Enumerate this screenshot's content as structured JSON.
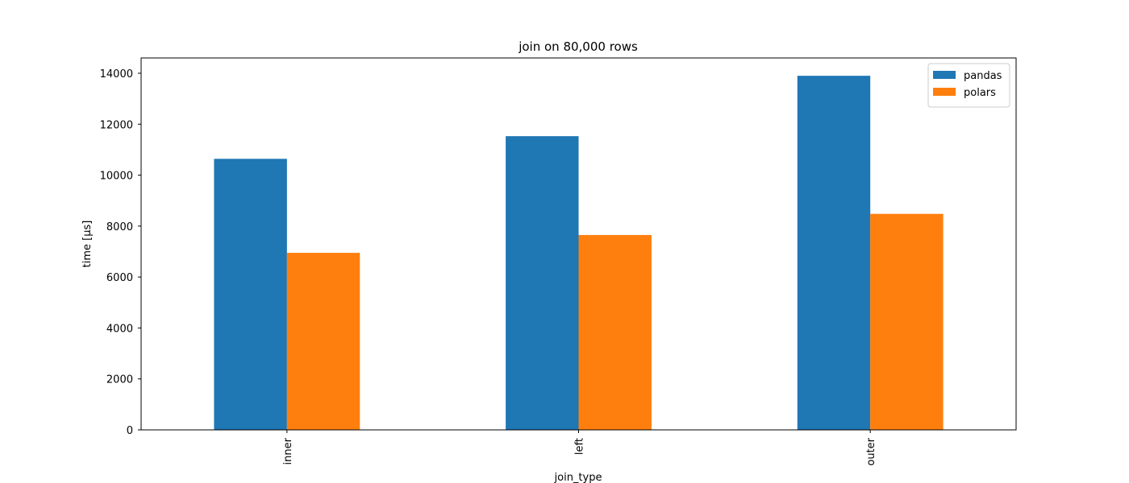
{
  "chart_data": {
    "type": "bar",
    "title": "join on 80,000 rows",
    "xlabel": "join_type",
    "ylabel": "time [µs]",
    "categories": [
      "inner",
      "left",
      "outer"
    ],
    "series": [
      {
        "name": "pandas",
        "values": [
          10640,
          11530,
          13900
        ],
        "color": "#1f77b4"
      },
      {
        "name": "polars",
        "values": [
          6950,
          7650,
          8480
        ],
        "color": "#ff7f0e"
      }
    ],
    "ylim": [
      0,
      14600
    ],
    "yticks": [
      0,
      2000,
      4000,
      6000,
      8000,
      10000,
      12000,
      14000
    ],
    "ytick_labels": [
      "0",
      "2000",
      "4000",
      "6000",
      "8000",
      "10000",
      "12000",
      "14000"
    ],
    "grid": false,
    "legend_position": "top-right"
  }
}
